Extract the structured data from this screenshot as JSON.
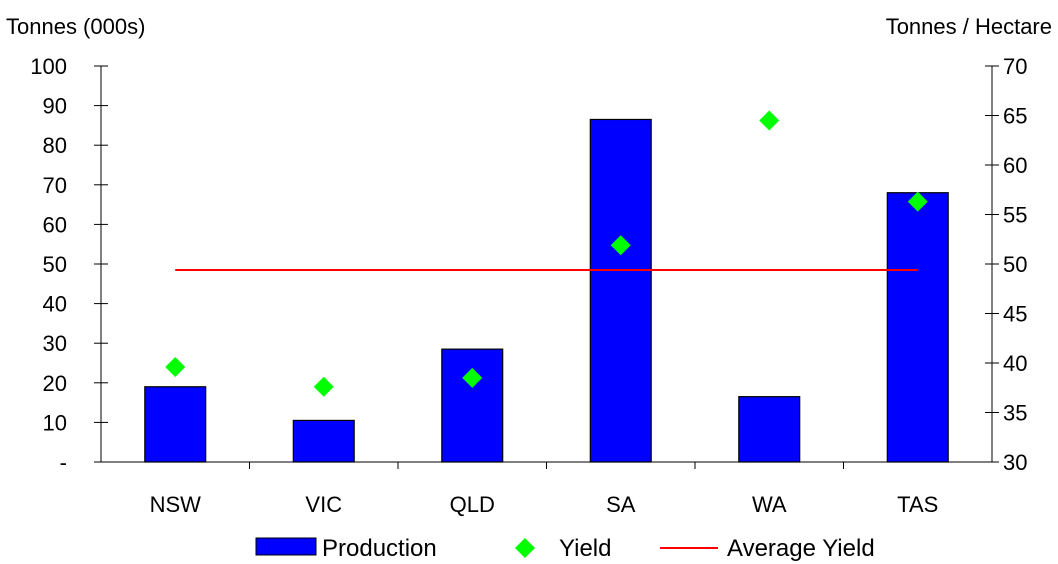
{
  "chart_data": {
    "type": "bar",
    "categories": [
      "NSW",
      "VIC",
      "QLD",
      "SA",
      "WA",
      "TAS"
    ],
    "y_left": {
      "label": "Tonnes (000s)",
      "range": [
        0,
        100
      ],
      "ticks": [
        0,
        10,
        20,
        30,
        40,
        50,
        60,
        70,
        80,
        90,
        100
      ],
      "tick_labels": [
        "-",
        "10",
        "20",
        "30",
        "40",
        "50",
        "60",
        "70",
        "80",
        "90",
        "100"
      ]
    },
    "y_right": {
      "label": "Tonnes / Hectare",
      "range": [
        30,
        70
      ],
      "ticks": [
        30,
        35,
        40,
        45,
        50,
        55,
        60,
        65,
        70
      ],
      "tick_labels": [
        "30",
        "35",
        "40",
        "45",
        "50",
        "55",
        "60",
        "65",
        "70"
      ]
    },
    "series": [
      {
        "name": "Production",
        "type": "bar",
        "axis": "left",
        "color": "#0000ff",
        "values": [
          19,
          10.5,
          28.5,
          86.5,
          16.5,
          68
        ]
      },
      {
        "name": "Yield",
        "type": "scatter",
        "marker": "diamond",
        "axis": "right",
        "color": "#00ff00",
        "values": [
          39.6,
          37.6,
          38.5,
          51.9,
          64.5,
          56.3
        ]
      },
      {
        "name": "Average Yield",
        "type": "line",
        "axis": "right",
        "color": "#ff0000",
        "values": [
          49.4,
          49.4,
          49.4,
          49.4,
          49.4,
          49.4
        ]
      }
    ],
    "legend": {
      "position": "bottom",
      "items": [
        {
          "name": "Production",
          "symbol": "bar"
        },
        {
          "name": "Yield",
          "symbol": "diamond"
        },
        {
          "name": "Average Yield",
          "symbol": "line"
        }
      ]
    },
    "grid": false
  }
}
